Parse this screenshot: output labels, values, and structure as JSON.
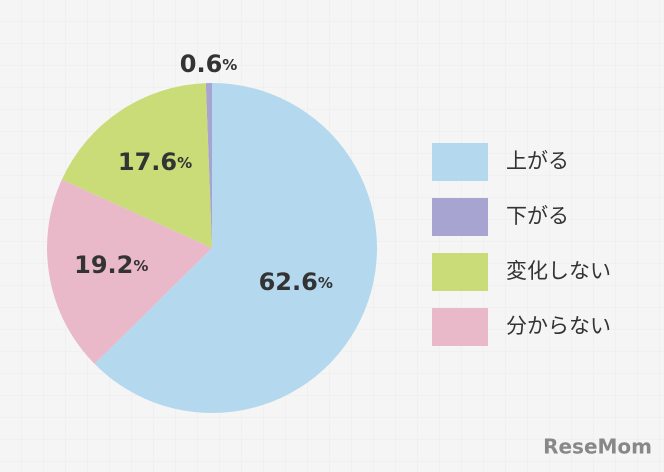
{
  "chart_data": {
    "type": "pie",
    "categories": [
      "上がる",
      "下がる",
      "変化しない",
      "分からない"
    ],
    "values": [
      62.6,
      0.6,
      17.6,
      19.2
    ],
    "value_labels": [
      "62.6%",
      "0.6%",
      "17.6%",
      "19.2%"
    ],
    "colors": [
      "#b4d9ee",
      "#a8a4d2",
      "#c9dc78",
      "#e9b9c9"
    ],
    "legend": "right"
  },
  "watermark": "ReseMom"
}
